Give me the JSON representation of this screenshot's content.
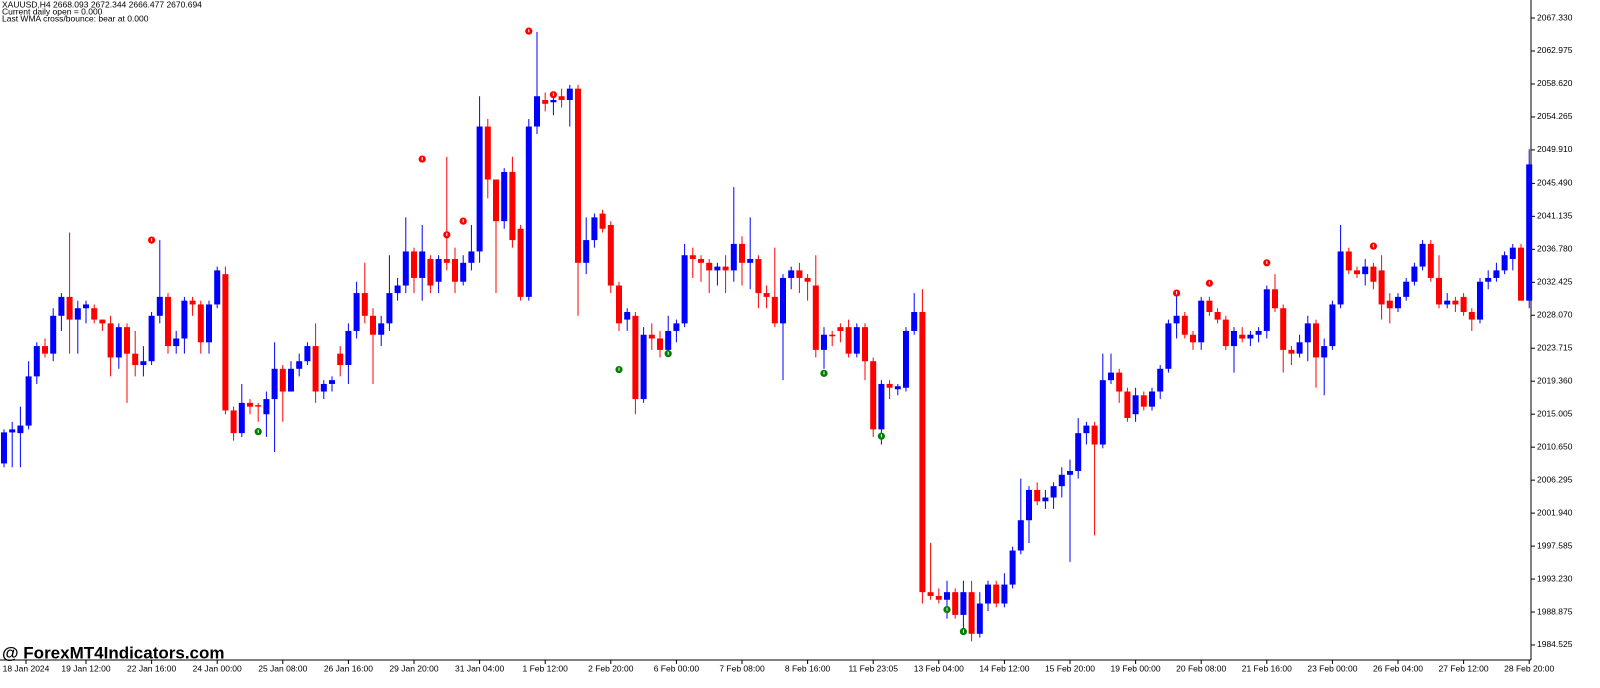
{
  "chart_data": {
    "type": "candlestick",
    "header": [
      "XAUUSD,H4  2668.093 2672.344 2666.477 2670.694",
      "Current daily open = 0.000",
      "Last WMA cross/bounce: bear at 0.000"
    ],
    "watermark": "@ ForexMT4Indicators.com",
    "up_color": "#0000ff",
    "down_color": "#ff0000",
    "open": [
      2008.5,
      2012.6,
      2012.5,
      2013.5,
      2020,
      2024,
      2023,
      2028,
      2030.5,
      2027.5,
      2029,
      2029,
      2027.5,
      2027,
      2022.5,
      2026.5,
      2023,
      2021.5,
      2022,
      2028,
      2030.5,
      2024,
      2025,
      2030,
      2029.5,
      2024.5,
      2029.5,
      2033.5,
      2015.5,
      2012.5,
      2016.5,
      2016.2,
      2015,
      2017,
      2021,
      2018,
      2021,
      2022,
      2024,
      2018,
      2019,
      2023,
      2021.5,
      2026,
      2031,
      2028,
      2025.5,
      2027,
      2031,
      2032,
      2036.5,
      2033,
      2035.5,
      2032.5,
      2035.5,
      2035.5,
      2032.5,
      2035,
      2036.5,
      2053,
      2046,
      2040.5,
      2047,
      2039.5,
      2030.5,
      2053,
      2056.5,
      2056.2,
      2057,
      2056.5,
      2058,
      2035,
      2038,
      2041.5,
      2040,
      2032,
      2027.5,
      2028,
      2017,
      2025.5,
      2025,
      2023.5,
      2026,
      2027,
      2036,
      2035.5,
      2035,
      2034,
      2034.5,
      2034,
      2037.5,
      2035,
      2035.5,
      2031,
      2030.5,
      2027,
      2033,
      2034,
      2033,
      2032,
      2023.5,
      2025.5,
      2026.5,
      2026.5,
      2023,
      2026.5,
      2022,
      2013,
      2019,
      2018.3,
      2018.5,
      2026,
      2028.5,
      1991.5,
      1991,
      1990.5,
      1991.5,
      1988.5,
      1991.5,
      1986,
      1990,
      1992.5,
      1990,
      1992.5,
      1997,
      2001,
      2005,
      2003.5,
      2004,
      2005.5,
      2007,
      2007.5,
      2012.5,
      2013.5,
      2011,
      2019.5,
      2020.5,
      2018,
      2015,
      2017.5,
      2016,
      2018,
      2021,
      2027,
      2028,
      2025.5,
      2024.5,
      2030,
      2028.5,
      2027.5,
      2024,
      2025.5,
      2025,
      2025.5,
      2026,
      2031.5,
      2029,
      2023.5,
      2023,
      2024.5,
      2027,
      2022.5,
      2024,
      2029.5,
      2036.5,
      2034,
      2033.5,
      2034.5,
      2034,
      2030,
      2029,
      2030.5,
      2032.5,
      2034.5,
      2037.5,
      2033,
      2029.5,
      2030,
      2030.5,
      2028.5,
      2027.5,
      2032.5,
      2033,
      2034,
      2035.5,
      2037,
      2030
    ],
    "high": [
      2013,
      2014,
      2016,
      2022,
      2024.5,
      2025,
      2029,
      2031,
      2039,
      2030,
      2030,
      2029.5,
      2027.5,
      2028,
      2027,
      2027,
      2026,
      2024,
      2028.5,
      2038,
      2031,
      2026,
      2030.5,
      2030.5,
      2030,
      2030,
      2034.5,
      2034.5,
      2016,
      2019,
      2017,
      2016.5,
      2018,
      2024.5,
      2021.5,
      2022,
      2023,
      2024.5,
      2027,
      2019.5,
      2020,
      2024,
      2027,
      2032.5,
      2035,
      2029,
      2028,
      2036,
      2033,
      2041,
      2037,
      2040,
      2036,
      2036,
      2049,
      2037,
      2036,
      2040,
      2057,
      2054,
      2046,
      2047.5,
      2049,
      2040,
      2054,
      2065.5,
      2057.5,
      2057,
      2058,
      2058.5,
      2058.5,
      2041,
      2041.5,
      2042,
      2040.5,
      2032.5,
      2029,
      2028.5,
      2026.5,
      2027,
      2026,
      2028,
      2027.5,
      2037.5,
      2037,
      2036,
      2035.5,
      2035,
      2036,
      2045,
      2038.5,
      2041,
      2036,
      2032,
      2037,
      2033.5,
      2034.5,
      2035,
      2033.5,
      2036,
      2026.5,
      2026,
      2027,
      2027.5,
      2027,
      2027,
      2022.5,
      2019.5,
      2019.5,
      2019,
      2026.5,
      2031,
      2031.5,
      1998,
      1992,
      1993,
      1992,
      1993,
      1993,
      1991.5,
      1993,
      1993,
      1994,
      1997.5,
      2006.5,
      2005.5,
      2006,
      2005,
      2006,
      2008,
      2009,
      2014.5,
      2014,
      2014,
      2023,
      2023,
      2021,
      2018.5,
      2018.5,
      2018,
      2018.5,
      2021.5,
      2027.5,
      2031,
      2028.5,
      2026,
      2030.5,
      2030.5,
      2029,
      2028,
      2026.5,
      2026.5,
      2026,
      2026.5,
      2032,
      2033.5,
      2029.5,
      2024,
      2025.5,
      2028,
      2027.5,
      2025,
      2030,
      2040,
      2037,
      2034.5,
      2035.5,
      2035,
      2036,
      2031,
      2031,
      2033,
      2035,
      2038,
      2038,
      2036,
      2031,
      2030.5,
      2031,
      2029,
      2033,
      2034,
      2035,
      2036.5,
      2037.5,
      2037.5,
      2050
    ],
    "low": [
      2008,
      2008,
      2008,
      2013,
      2019,
      2022.5,
      2022,
      2026,
      2023,
      2023,
      2027,
      2027,
      2026,
      2020,
      2021,
      2016.5,
      2020,
      2020,
      2021.5,
      2027,
      2023,
      2023,
      2023,
      2028,
      2023,
      2023,
      2029,
      2015,
      2011.5,
      2012,
      2015,
      2014,
      2012,
      2010,
      2014,
      2018,
      2020,
      2021.5,
      2016.5,
      2017,
      2018,
      2020,
      2019,
      2025,
      2027,
      2019,
      2024,
      2026,
      2030,
      2031,
      2031,
      2030,
      2031,
      2031,
      2034,
      2031,
      2032,
      2034,
      2035,
      2043.5,
      2031,
      2039.5,
      2037,
      2030,
      2030,
      2052,
      2055,
      2054.5,
      2055.5,
      2053,
      2028,
      2033.5,
      2037,
      2039,
      2031,
      2026,
      2026,
      2015,
      2016.5,
      2023.5,
      2022.5,
      2023,
      2024.5,
      2026.5,
      2033,
      2032.5,
      2031,
      2032,
      2031,
      2032.5,
      2032,
      2031.5,
      2029,
      2029,
      2026.5,
      2019.5,
      2031.5,
      2031,
      2030,
      2022.5,
      2021,
      2024,
      2024.5,
      2022.5,
      2022.5,
      2019.5,
      2012,
      2011,
      2017,
      2017.5,
      2018,
      2025.5,
      1990,
      1990.5,
      1990,
      1988,
      1988,
      1986,
      1985,
      1985.5,
      1989,
      1989.5,
      1989.5,
      1992,
      1996.5,
      1998,
      2003,
      2002.5,
      2002.5,
      2004,
      1995.5,
      2006.5,
      2011,
      1999,
      2010.5,
      2019,
      2016.5,
      2014,
      2014,
      2015.5,
      2015.5,
      2017,
      2020.5,
      2025,
      2025,
      2023.5,
      2023.5,
      2028,
      2027,
      2023.5,
      2020.5,
      2024.5,
      2024,
      2024.5,
      2025,
      2028.5,
      2020.5,
      2021.5,
      2022.5,
      2022,
      2018.5,
      2017.5,
      2023.5,
      2029,
      2033.5,
      2033,
      2032,
      2031.5,
      2027.5,
      2027,
      2028.5,
      2030,
      2032,
      2034,
      2032.5,
      2029,
      2029,
      2028.5,
      2028,
      2026,
      2027,
      2031.5,
      2032.5,
      2033.5,
      2034,
      2030,
      2029
    ],
    "close": [
      2012.6,
      2013,
      2013.5,
      2020,
      2024,
      2023,
      2028,
      2030.5,
      2027.5,
      2029,
      2029.5,
      2027.5,
      2027,
      2022.5,
      2026.5,
      2023,
      2021.5,
      2022,
      2028,
      2030.5,
      2024,
      2025,
      2030,
      2029.5,
      2024.5,
      2029.5,
      2034,
      2015.5,
      2012.5,
      2016.5,
      2016,
      2016,
      2017,
      2021,
      2018,
      2021,
      2022,
      2024,
      2018,
      2019,
      2019.5,
      2021.5,
      2026,
      2031,
      2028,
      2025.5,
      2027,
      2031,
      2032,
      2036.5,
      2033,
      2036.5,
      2032,
      2035.5,
      2035,
      2032.5,
      2035,
      2036.5,
      2053,
      2046,
      2040.5,
      2047,
      2038,
      2030.5,
      2053,
      2057,
      2056,
      2056.5,
      2056.5,
      2058,
      2035,
      2038,
      2041,
      2039.5,
      2032,
      2027,
      2028.5,
      2017,
      2025.5,
      2025,
      2023.5,
      2026,
      2027,
      2036,
      2035.5,
      2035,
      2034,
      2034.5,
      2034,
      2037.5,
      2035,
      2035.5,
      2031,
      2030.5,
      2027,
      2033,
      2034,
      2033,
      2032.5,
      2023.5,
      2025.5,
      2025.3,
      2026,
      2023,
      2026.5,
      2022,
      2013,
      2019,
      2018.5,
      2018.7,
      2026,
      2028.5,
      1991.5,
      1991,
      1990.5,
      1991.5,
      1988.5,
      1991.5,
      1986,
      1990,
      1992.5,
      1990,
      1992.5,
      1997,
      2001,
      2005,
      2003.5,
      2004,
      2005.5,
      2007,
      2007.5,
      2012.5,
      2013.5,
      2011,
      2019.5,
      2020.5,
      2018,
      2014.5,
      2017.5,
      2016,
      2018,
      2021,
      2027,
      2028,
      2025.5,
      2024.5,
      2030,
      2028.5,
      2027.5,
      2024,
      2026,
      2025,
      2025.5,
      2026,
      2031.5,
      2029,
      2023.5,
      2023,
      2024.5,
      2027,
      2022.5,
      2024,
      2029.5,
      2036.5,
      2034,
      2033.5,
      2034.5,
      2032.5,
      2029.5,
      2029,
      2030.5,
      2032.5,
      2034.5,
      2037.5,
      2033,
      2029.5,
      2030,
      2029.5,
      2028.5,
      2027.5,
      2032.5,
      2033,
      2034,
      2036,
      2037,
      2030,
      2048
    ],
    "sell_signals": {
      "color": "#ff0000",
      "bars": [
        18,
        51,
        54,
        56,
        64,
        67,
        143,
        147,
        154,
        167
      ],
      "values": [
        2038.0,
        2048.7,
        2038.7,
        2040.5,
        2065.6,
        2057.2,
        2031.0,
        2032.3,
        2035.0,
        2037.2
      ]
    },
    "buy_signals": {
      "color": "#008000",
      "bars": [
        31,
        75,
        81,
        100,
        107,
        115,
        117
      ],
      "values": [
        2012.7,
        2020.9,
        2023.0,
        2020.4,
        2012.1,
        1989.2,
        1986.3
      ]
    },
    "x_labels": [
      "18 Jan 2024",
      "19 Jan 12:00",
      "22 Jan 16:00",
      "24 Jan 00:00",
      "25 Jan 08:00",
      "26 Jan 16:00",
      "29 Jan 20:00",
      "31 Jan 04:00",
      "1 Feb 12:00",
      "2 Feb 20:00",
      "6 Feb 00:00",
      "7 Feb 08:00",
      "8 Feb 16:00",
      "11 Feb 23:05",
      "13 Feb 04:00",
      "14 Feb 12:00",
      "15 Feb 20:00",
      "19 Feb 00:00",
      "20 Feb 08:00",
      "21 Feb 16:00",
      "23 Feb 00:00",
      "26 Feb 04:00",
      "27 Feb 12:00",
      "28 Feb 20:00"
    ],
    "ylim": [
      1982.54,
      2069.71
    ],
    "yticks": [
      {
        "value": 2067.33,
        "label": "2067.330"
      },
      {
        "value": 2062.975,
        "label": "2062.975"
      },
      {
        "value": 2058.62,
        "label": "2058.620"
      },
      {
        "value": 2054.265,
        "label": "2054.265"
      },
      {
        "value": 2049.91,
        "label": "2049.910"
      },
      {
        "value": 2045.49,
        "label": "2045.490"
      },
      {
        "value": 2041.135,
        "label": "2041.135"
      },
      {
        "value": 2036.78,
        "label": "2036.780"
      },
      {
        "value": 2032.425,
        "label": "2032.425"
      },
      {
        "value": 2028.07,
        "label": "2028.070"
      },
      {
        "value": 2023.715,
        "label": "2023.715"
      },
      {
        "value": 2019.36,
        "label": "2019.360"
      },
      {
        "value": 2015.005,
        "label": "2015.005"
      },
      {
        "value": 2010.65,
        "label": "2010.650"
      },
      {
        "value": 2006.295,
        "label": "2006.295"
      },
      {
        "value": 2001.94,
        "label": "2001.940"
      },
      {
        "value": 1997.585,
        "label": "1997.585"
      },
      {
        "value": 1993.23,
        "label": "1993.230"
      },
      {
        "value": 1988.875,
        "label": "1988.875"
      },
      {
        "value": 1984.525,
        "label": "1984.525"
      }
    ]
  }
}
